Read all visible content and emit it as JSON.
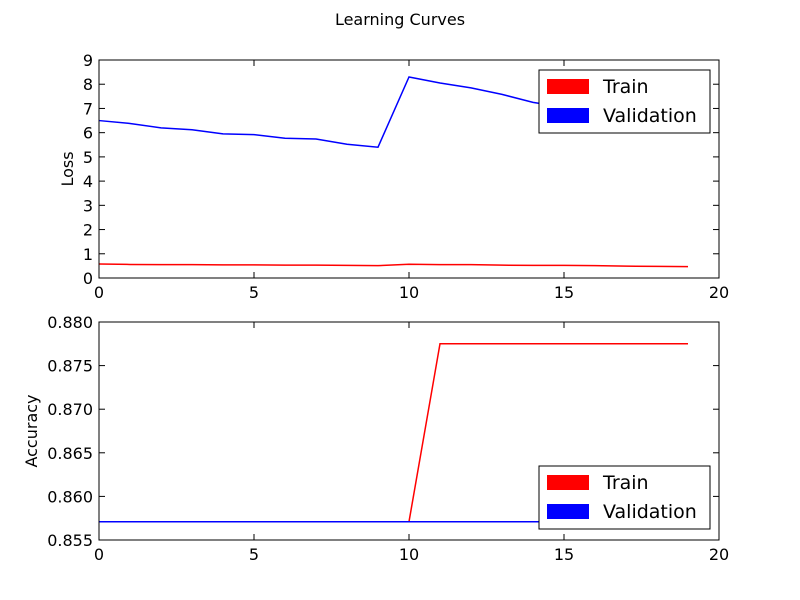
{
  "title": "Learning Curves",
  "colors": {
    "train": "#ff0000",
    "validation": "#0000ff"
  },
  "chart_data": [
    {
      "type": "line",
      "ylabel": "Loss",
      "xlim": [
        0,
        20
      ],
      "ylim": [
        0,
        9
      ],
      "xticks": [
        0,
        5,
        10,
        15,
        20
      ],
      "yticks": [
        0,
        1,
        2,
        3,
        4,
        5,
        6,
        7,
        8,
        9
      ],
      "ytick_labels": [
        "0",
        "1",
        "2",
        "3",
        "4",
        "5",
        "6",
        "7",
        "8",
        "9"
      ],
      "grid": false,
      "legend": {
        "position": "upper right",
        "entries": [
          "Train",
          "Validation"
        ]
      },
      "x": [
        0,
        1,
        2,
        3,
        4,
        5,
        6,
        7,
        8,
        9,
        10,
        11,
        12,
        13,
        14,
        15,
        16,
        17,
        18,
        19
      ],
      "series": [
        {
          "name": "Train",
          "color": "#ff0000",
          "values": [
            0.58,
            0.56,
            0.55,
            0.55,
            0.54,
            0.54,
            0.53,
            0.53,
            0.52,
            0.51,
            0.57,
            0.55,
            0.55,
            0.53,
            0.52,
            0.52,
            0.51,
            0.49,
            0.48,
            0.47
          ]
        },
        {
          "name": "Validation",
          "color": "#0000ff",
          "values": [
            6.5,
            6.38,
            6.2,
            6.12,
            5.95,
            5.92,
            5.77,
            5.74,
            5.52,
            5.4,
            8.3,
            8.05,
            7.85,
            7.58,
            7.25,
            7.05,
            6.85,
            6.65,
            6.45,
            6.3
          ]
        }
      ]
    },
    {
      "type": "line",
      "ylabel": "Accuracy",
      "xlim": [
        0,
        20
      ],
      "ylim": [
        0.855,
        0.88
      ],
      "xticks": [
        0,
        5,
        10,
        15,
        20
      ],
      "yticks": [
        0.855,
        0.86,
        0.865,
        0.87,
        0.875,
        0.88
      ],
      "ytick_labels": [
        "0.855",
        "0.860",
        "0.865",
        "0.870",
        "0.875",
        "0.880"
      ],
      "grid": false,
      "legend": {
        "position": "lower right",
        "entries": [
          "Train",
          "Validation"
        ]
      },
      "x": [
        0,
        1,
        2,
        3,
        4,
        5,
        6,
        7,
        8,
        9,
        10,
        11,
        12,
        13,
        14,
        15,
        16,
        17,
        18,
        19
      ],
      "series": [
        {
          "name": "Train",
          "color": "#ff0000",
          "values": [
            0.8571,
            0.8571,
            0.8571,
            0.8571,
            0.8571,
            0.8571,
            0.8571,
            0.8571,
            0.8571,
            0.8571,
            0.8571,
            0.8775,
            0.8775,
            0.8775,
            0.8775,
            0.8775,
            0.8775,
            0.8775,
            0.8775,
            0.8775
          ]
        },
        {
          "name": "Validation",
          "color": "#0000ff",
          "values": [
            0.8571,
            0.8571,
            0.8571,
            0.8571,
            0.8571,
            0.8571,
            0.8571,
            0.8571,
            0.8571,
            0.8571,
            0.8571,
            0.8571,
            0.8571,
            0.8571,
            0.8571,
            0.8571,
            0.8571,
            0.8571,
            0.8571,
            0.8571
          ]
        }
      ]
    }
  ]
}
